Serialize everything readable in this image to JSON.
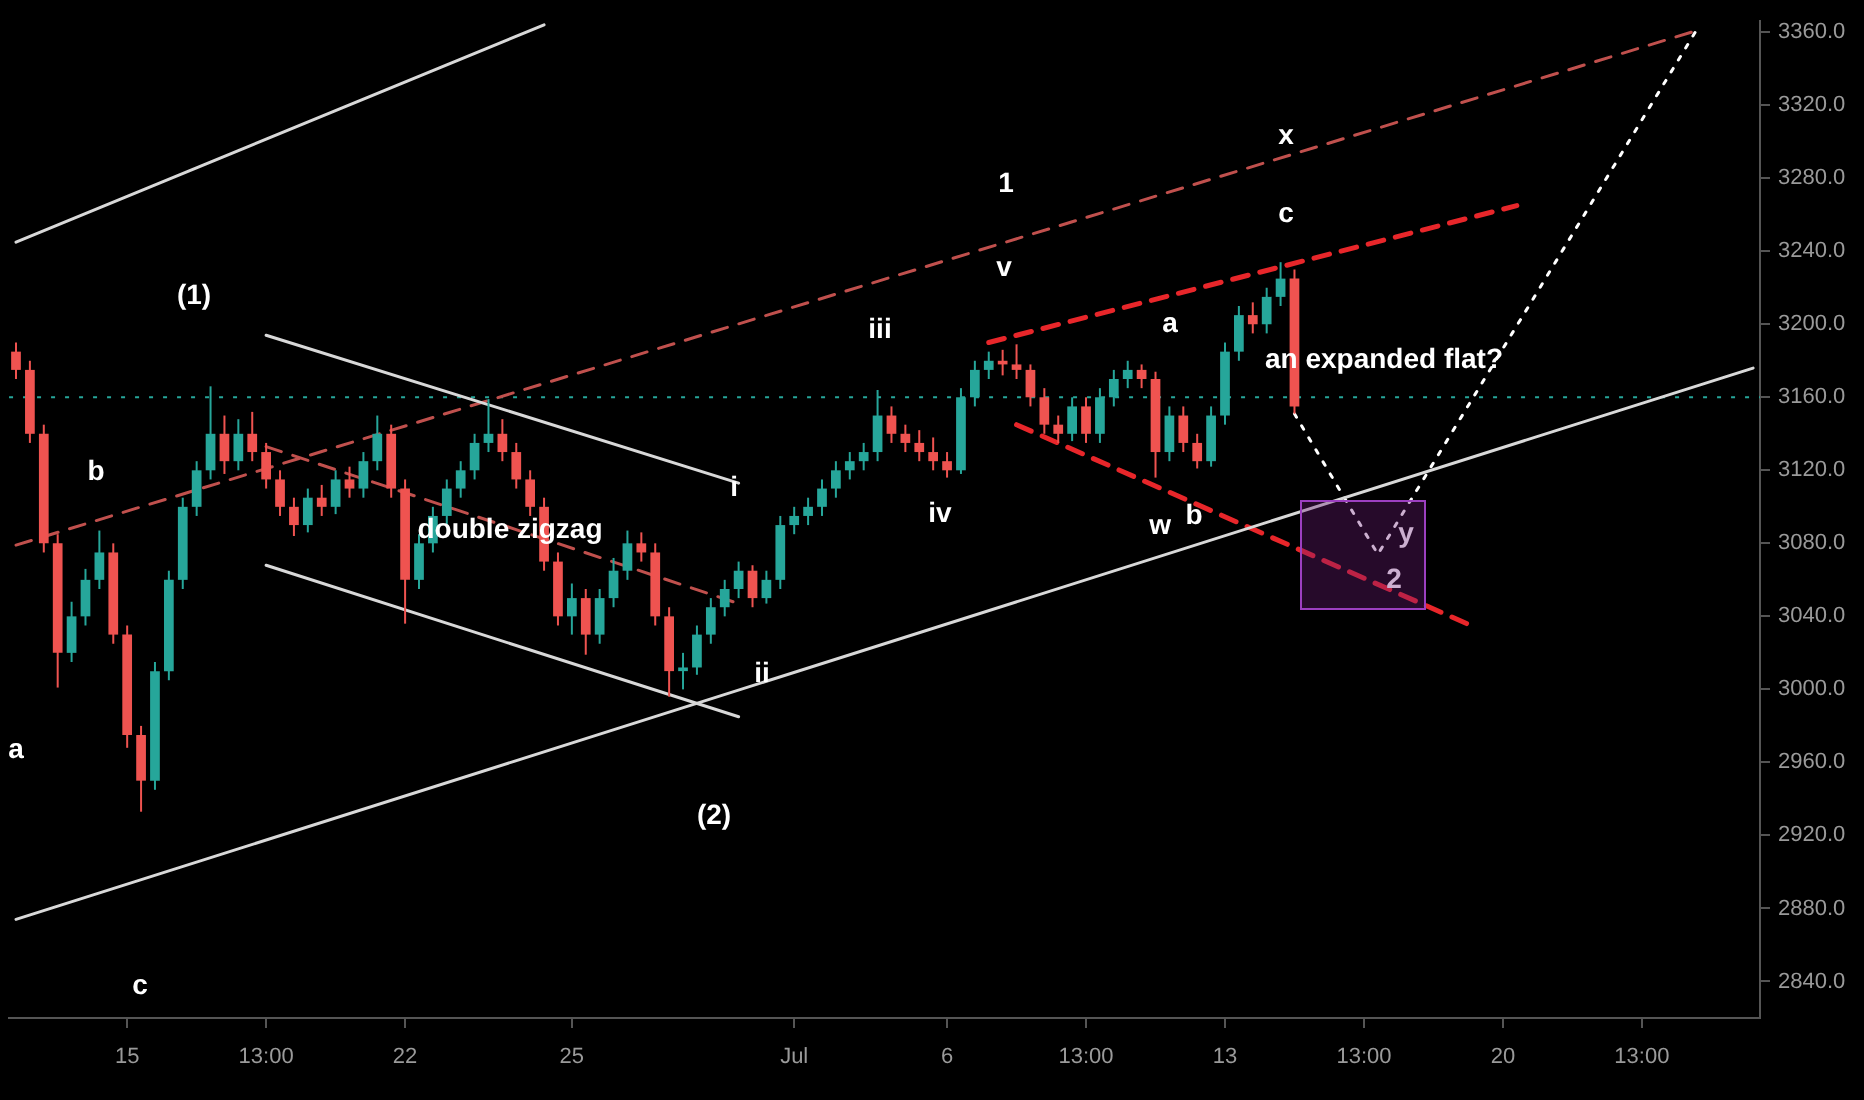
{
  "chart_data": {
    "type": "candlestick",
    "categories": [
      null,
      null,
      null,
      null,
      null,
      null,
      null,
      null,
      "15",
      null,
      null,
      null,
      null,
      null,
      null,
      null,
      null,
      null,
      "13:00",
      null,
      null,
      null,
      null,
      null,
      null,
      null,
      null,
      null,
      "22",
      null,
      null,
      null,
      null,
      null,
      null,
      null,
      null,
      null,
      null,
      null,
      "25",
      null,
      null,
      null,
      null,
      null,
      null,
      null,
      null,
      null,
      null,
      null,
      null,
      null,
      null,
      null,
      "Jul",
      null,
      null,
      null,
      null,
      null,
      null,
      null,
      null,
      null,
      null,
      "6",
      null,
      null,
      null,
      null,
      null,
      null,
      null,
      null,
      null,
      "13:00",
      null,
      null,
      null,
      null,
      null,
      null,
      null,
      null,
      null,
      "13",
      null,
      null,
      null,
      null,
      null,
      null,
      null,
      null,
      null,
      "13:00",
      null,
      null,
      null,
      null,
      null,
      null,
      null,
      null,
      null,
      "20",
      null,
      null,
      null,
      null,
      null,
      null,
      null,
      null,
      null,
      "13:00",
      null,
      null,
      null,
      null,
      null,
      null,
      null,
      null
    ],
    "ohlc": [
      [
        3185,
        3190,
        3170,
        3175
      ],
      [
        3175,
        3180,
        3135,
        3140
      ],
      [
        3140,
        3145,
        3075,
        3080
      ],
      [
        3080,
        3085,
        3001,
        3020
      ],
      [
        3020,
        3048,
        3015,
        3040
      ],
      [
        3040,
        3066,
        3035,
        3060
      ],
      [
        3060,
        3087,
        3055,
        3075
      ],
      [
        3075,
        3080,
        3025,
        3030
      ],
      [
        3030,
        3035,
        2968,
        2975
      ],
      [
        2975,
        2980,
        2933,
        2950
      ],
      [
        2950,
        3015,
        2945,
        3010
      ],
      [
        3010,
        3065,
        3005,
        3060
      ],
      [
        3060,
        3105,
        3055,
        3100
      ],
      [
        3100,
        3125,
        3095,
        3120
      ],
      [
        3120,
        3166,
        3115,
        3140
      ],
      [
        3140,
        3150,
        3118,
        3125
      ],
      [
        3125,
        3148,
        3120,
        3140
      ],
      [
        3140,
        3152,
        3125,
        3130
      ],
      [
        3130,
        3135,
        3110,
        3115
      ],
      [
        3115,
        3120,
        3095,
        3100
      ],
      [
        3100,
        3105,
        3084,
        3090
      ],
      [
        3090,
        3110,
        3086,
        3105
      ],
      [
        3105,
        3112,
        3095,
        3100
      ],
      [
        3100,
        3120,
        3096,
        3115
      ],
      [
        3115,
        3122,
        3105,
        3110
      ],
      [
        3110,
        3130,
        3105,
        3125
      ],
      [
        3125,
        3150,
        3120,
        3140
      ],
      [
        3140,
        3145,
        3105,
        3110
      ],
      [
        3110,
        3115,
        3036,
        3060
      ],
      [
        3060,
        3085,
        3055,
        3080
      ],
      [
        3080,
        3100,
        3075,
        3095
      ],
      [
        3095,
        3115,
        3090,
        3110
      ],
      [
        3110,
        3125,
        3105,
        3120
      ],
      [
        3120,
        3140,
        3115,
        3135
      ],
      [
        3135,
        3159,
        3130,
        3140
      ],
      [
        3140,
        3148,
        3125,
        3130
      ],
      [
        3130,
        3135,
        3110,
        3115
      ],
      [
        3115,
        3120,
        3095,
        3100
      ],
      [
        3100,
        3105,
        3065,
        3070
      ],
      [
        3070,
        3075,
        3035,
        3040
      ],
      [
        3040,
        3058,
        3030,
        3050
      ],
      [
        3050,
        3055,
        3019,
        3030
      ],
      [
        3030,
        3055,
        3025,
        3050
      ],
      [
        3050,
        3072,
        3045,
        3065
      ],
      [
        3065,
        3087,
        3060,
        3080
      ],
      [
        3080,
        3086,
        3070,
        3075
      ],
      [
        3075,
        3080,
        3035,
        3040
      ],
      [
        3040,
        3045,
        2996,
        3010
      ],
      [
        3010,
        3020,
        3000,
        3012
      ],
      [
        3012,
        3035,
        3008,
        3030
      ],
      [
        3030,
        3050,
        3025,
        3045
      ],
      [
        3045,
        3060,
        3040,
        3055
      ],
      [
        3055,
        3070,
        3050,
        3065
      ],
      [
        3065,
        3068,
        3045,
        3050
      ],
      [
        3050,
        3065,
        3047,
        3060
      ],
      [
        3060,
        3095,
        3055,
        3090
      ],
      [
        3090,
        3100,
        3085,
        3095
      ],
      [
        3095,
        3105,
        3090,
        3100
      ],
      [
        3100,
        3115,
        3095,
        3110
      ],
      [
        3110,
        3125,
        3105,
        3120
      ],
      [
        3120,
        3130,
        3115,
        3125
      ],
      [
        3125,
        3135,
        3120,
        3130
      ],
      [
        3130,
        3164,
        3125,
        3150
      ],
      [
        3150,
        3155,
        3135,
        3140
      ],
      [
        3140,
        3145,
        3130,
        3135
      ],
      [
        3135,
        3142,
        3125,
        3130
      ],
      [
        3130,
        3138,
        3120,
        3125
      ],
      [
        3125,
        3130,
        3116,
        3120
      ],
      [
        3120,
        3165,
        3118,
        3160
      ],
      [
        3160,
        3180,
        3155,
        3175
      ],
      [
        3175,
        3185,
        3170,
        3180
      ],
      [
        3180,
        3186,
        3172,
        3178
      ],
      [
        3178,
        3189,
        3170,
        3175
      ],
      [
        3175,
        3178,
        3155,
        3160
      ],
      [
        3160,
        3165,
        3140,
        3145
      ],
      [
        3145,
        3150,
        3135,
        3140
      ],
      [
        3140,
        3160,
        3136,
        3155
      ],
      [
        3155,
        3160,
        3135,
        3140
      ],
      [
        3140,
        3165,
        3135,
        3160
      ],
      [
        3160,
        3175,
        3155,
        3170
      ],
      [
        3170,
        3180,
        3165,
        3175
      ],
      [
        3175,
        3178,
        3165,
        3170
      ],
      [
        3170,
        3174,
        3116,
        3130
      ],
      [
        3130,
        3155,
        3125,
        3150
      ],
      [
        3150,
        3155,
        3130,
        3135
      ],
      [
        3135,
        3140,
        3121,
        3125
      ],
      [
        3125,
        3155,
        3122,
        3150
      ],
      [
        3150,
        3190,
        3145,
        3185
      ],
      [
        3185,
        3210,
        3180,
        3205
      ],
      [
        3205,
        3212,
        3195,
        3200
      ],
      [
        3200,
        3220,
        3195,
        3215
      ],
      [
        3215,
        3234,
        3210,
        3225
      ],
      [
        3225,
        3230,
        3151,
        3155
      ],
      null,
      null,
      null,
      null,
      null,
      null,
      null,
      null,
      null,
      null,
      null,
      null,
      null,
      null,
      null,
      null,
      null,
      null,
      null,
      null,
      null,
      null,
      null,
      null,
      null,
      null,
      null,
      null,
      null,
      null,
      null,
      null,
      null
    ],
    "series": [
      {
        "type": "line",
        "color": "#d8d8d8",
        "line_style": "solid",
        "values": [
          3245,
          null,
          null,
          null,
          null,
          null,
          null,
          null,
          null,
          null,
          null,
          null,
          null,
          null,
          null,
          null,
          null,
          null,
          null,
          null,
          null,
          null,
          null,
          null,
          null,
          null,
          null,
          null,
          null,
          null,
          null,
          null,
          null,
          null,
          null,
          null,
          null,
          null,
          3364,
          null,
          null,
          null,
          null,
          null,
          null,
          null,
          null,
          null,
          null,
          null,
          null,
          null,
          null,
          null,
          null,
          null,
          null,
          null,
          null,
          null,
          null,
          null,
          null,
          null,
          null,
          null,
          null,
          null,
          null,
          null,
          null,
          null,
          null,
          null,
          null,
          null,
          null,
          null,
          null,
          null,
          null,
          null,
          null,
          null,
          null,
          null,
          null,
          null,
          null,
          null,
          null,
          null,
          null,
          null,
          null,
          null,
          null,
          null,
          null,
          null,
          null,
          null,
          null,
          null,
          null,
          null,
          null,
          null,
          null,
          null,
          null,
          null,
          null,
          null,
          null,
          null,
          null,
          null,
          null,
          null,
          null,
          null,
          null,
          null,
          null,
          null
        ]
      },
      {
        "type": "line",
        "color": "#d8d8d8",
        "line_style": "solid",
        "values": [
          2874,
          null,
          null,
          null,
          null,
          null,
          null,
          null,
          null,
          null,
          null,
          null,
          null,
          null,
          null,
          null,
          null,
          null,
          null,
          null,
          null,
          null,
          null,
          null,
          null,
          null,
          null,
          null,
          null,
          null,
          null,
          null,
          null,
          null,
          null,
          null,
          null,
          null,
          null,
          null,
          null,
          null,
          null,
          null,
          null,
          null,
          null,
          null,
          null,
          null,
          null,
          null,
          null,
          null,
          null,
          null,
          null,
          null,
          null,
          null,
          null,
          null,
          null,
          null,
          null,
          null,
          null,
          null,
          null,
          null,
          null,
          null,
          null,
          null,
          null,
          null,
          null,
          null,
          null,
          null,
          null,
          null,
          null,
          null,
          null,
          null,
          null,
          null,
          null,
          null,
          null,
          null,
          null,
          null,
          null,
          null,
          null,
          null,
          null,
          null,
          null,
          null,
          null,
          null,
          null,
          null,
          null,
          null,
          null,
          null,
          null,
          null,
          null,
          null,
          null,
          null,
          null,
          null,
          null,
          null,
          null,
          null,
          null,
          null,
          null,
          3176
        ]
      },
      {
        "type": "line",
        "color": "#d8d8d8",
        "line_style": "solid",
        "values": [
          null,
          null,
          null,
          null,
          null,
          null,
          null,
          null,
          null,
          null,
          null,
          null,
          null,
          null,
          null,
          null,
          null,
          null,
          3194,
          null,
          null,
          null,
          null,
          null,
          null,
          null,
          null,
          null,
          null,
          null,
          null,
          null,
          null,
          null,
          null,
          null,
          null,
          null,
          null,
          null,
          null,
          null,
          null,
          null,
          null,
          null,
          null,
          null,
          null,
          null,
          null,
          null,
          3113,
          null,
          null,
          null,
          null,
          null,
          null,
          null,
          null,
          null,
          null,
          null,
          null,
          null,
          null,
          null,
          null,
          null,
          null,
          null,
          null,
          null,
          null,
          null,
          null,
          null,
          null,
          null,
          null,
          null,
          null,
          null,
          null,
          null,
          null,
          null,
          null,
          null,
          null,
          null,
          null,
          null,
          null,
          null,
          null,
          null,
          null,
          null,
          null,
          null,
          null,
          null,
          null,
          null,
          null,
          null,
          null,
          null,
          null,
          null,
          null,
          null,
          null,
          null,
          null,
          null,
          null,
          null,
          null,
          null,
          null,
          null,
          null,
          null
        ]
      },
      {
        "type": "line",
        "color": "#d8d8d8",
        "line_style": "solid",
        "values": [
          null,
          null,
          null,
          null,
          null,
          null,
          null,
          null,
          null,
          null,
          null,
          null,
          null,
          null,
          null,
          null,
          null,
          null,
          3068,
          null,
          null,
          null,
          null,
          null,
          null,
          null,
          null,
          null,
          null,
          null,
          null,
          null,
          null,
          null,
          null,
          null,
          null,
          null,
          null,
          null,
          null,
          null,
          null,
          null,
          null,
          null,
          null,
          null,
          null,
          null,
          null,
          null,
          2985,
          null,
          null,
          null,
          null,
          null,
          null,
          null,
          null,
          null,
          null,
          null,
          null,
          null,
          null,
          null,
          null,
          null,
          null,
          null,
          null,
          null,
          null,
          null,
          null,
          null,
          null,
          null,
          null,
          null,
          null,
          null,
          null,
          null,
          null,
          null,
          null,
          null,
          null,
          null,
          null,
          null,
          null,
          null,
          null,
          null,
          null,
          null,
          null,
          null,
          null,
          null,
          null,
          null,
          null,
          null,
          null,
          null,
          null,
          null,
          null,
          null,
          null,
          null,
          null,
          null,
          null,
          null,
          null,
          null,
          null,
          null,
          null,
          null
        ]
      },
      {
        "type": "line",
        "color": "#c0504d",
        "line_style": "dashed",
        "values": [
          3079,
          null,
          null,
          null,
          null,
          null,
          null,
          null,
          null,
          null,
          null,
          null,
          null,
          null,
          null,
          null,
          null,
          null,
          null,
          null,
          null,
          null,
          null,
          null,
          null,
          null,
          null,
          null,
          null,
          null,
          null,
          null,
          null,
          null,
          null,
          null,
          null,
          null,
          null,
          null,
          null,
          null,
          null,
          null,
          null,
          null,
          null,
          null,
          null,
          null,
          null,
          null,
          null,
          null,
          null,
          null,
          null,
          null,
          null,
          null,
          null,
          null,
          null,
          null,
          null,
          null,
          null,
          null,
          null,
          null,
          null,
          null,
          null,
          null,
          null,
          null,
          null,
          null,
          null,
          null,
          null,
          null,
          null,
          null,
          null,
          null,
          null,
          null,
          null,
          null,
          null,
          null,
          null,
          null,
          null,
          null,
          null,
          null,
          null,
          null,
          null,
          null,
          null,
          null,
          null,
          null,
          null,
          null,
          null,
          null,
          null,
          null,
          null,
          null,
          null,
          null,
          null,
          null,
          null,
          null,
          null,
          3361,
          null,
          null,
          null,
          null
        ]
      },
      {
        "type": "line",
        "color": "#c0504d",
        "line_style": "dashed",
        "values": [
          null,
          null,
          null,
          null,
          null,
          null,
          null,
          null,
          null,
          null,
          null,
          null,
          null,
          null,
          null,
          null,
          null,
          null,
          3133,
          null,
          null,
          null,
          null,
          null,
          null,
          null,
          null,
          null,
          null,
          null,
          null,
          null,
          null,
          null,
          null,
          null,
          null,
          null,
          null,
          null,
          null,
          null,
          null,
          null,
          null,
          null,
          null,
          null,
          null,
          null,
          null,
          null,
          3047,
          null,
          null,
          null,
          null,
          null,
          null,
          null,
          null,
          null,
          null,
          null,
          null,
          null,
          null,
          null,
          null,
          null,
          null,
          null,
          null,
          null,
          null,
          null,
          null,
          null,
          null,
          null,
          null,
          null,
          null,
          null,
          null,
          null,
          null,
          null,
          null,
          null,
          null,
          null,
          null,
          null,
          null,
          null,
          null,
          null,
          null,
          null,
          null,
          null,
          null,
          null,
          null,
          null,
          null,
          null,
          null,
          null,
          null,
          null,
          null,
          null,
          null,
          null,
          null,
          null,
          null,
          null,
          null,
          null,
          null,
          null,
          null,
          null
        ]
      },
      {
        "type": "line",
        "color": "#e8262a",
        "line_style": "dashed",
        "values": [
          null,
          null,
          null,
          null,
          null,
          null,
          null,
          null,
          null,
          null,
          null,
          null,
          null,
          null,
          null,
          null,
          null,
          null,
          null,
          null,
          null,
          null,
          null,
          null,
          null,
          null,
          null,
          null,
          null,
          null,
          null,
          null,
          null,
          null,
          null,
          null,
          null,
          null,
          null,
          null,
          null,
          null,
          null,
          null,
          null,
          null,
          null,
          null,
          null,
          null,
          null,
          null,
          null,
          null,
          null,
          null,
          null,
          null,
          null,
          null,
          null,
          null,
          null,
          null,
          null,
          null,
          null,
          null,
          null,
          null,
          3190,
          null,
          null,
          null,
          null,
          null,
          null,
          null,
          null,
          null,
          null,
          null,
          null,
          null,
          null,
          null,
          null,
          null,
          null,
          null,
          null,
          null,
          null,
          null,
          null,
          null,
          null,
          null,
          null,
          null,
          null,
          null,
          null,
          null,
          null,
          null,
          null,
          null,
          3265,
          null,
          null,
          null,
          null,
          null,
          null,
          null,
          null,
          null,
          null,
          null,
          null,
          null,
          null,
          null,
          null,
          null
        ]
      },
      {
        "type": "line",
        "color": "#e8262a",
        "line_style": "dashed",
        "values": [
          null,
          null,
          null,
          null,
          null,
          null,
          null,
          null,
          null,
          null,
          null,
          null,
          null,
          null,
          null,
          null,
          null,
          null,
          null,
          null,
          null,
          null,
          null,
          null,
          null,
          null,
          null,
          null,
          null,
          null,
          null,
          null,
          null,
          null,
          null,
          null,
          null,
          null,
          null,
          null,
          null,
          null,
          null,
          null,
          null,
          null,
          null,
          null,
          null,
          null,
          null,
          null,
          null,
          null,
          null,
          null,
          null,
          null,
          null,
          null,
          null,
          null,
          null,
          null,
          null,
          null,
          null,
          null,
          null,
          null,
          null,
          null,
          3145,
          null,
          null,
          null,
          null,
          null,
          null,
          null,
          null,
          null,
          null,
          null,
          null,
          null,
          null,
          null,
          null,
          null,
          null,
          null,
          null,
          null,
          null,
          null,
          null,
          null,
          null,
          null,
          null,
          null,
          null,
          null,
          null,
          3034,
          null,
          null,
          null,
          null,
          null,
          null,
          null,
          null,
          null,
          null,
          null,
          null,
          null,
          null,
          null,
          null,
          null,
          null,
          null,
          null
        ]
      },
      {
        "type": "line",
        "color": "#ffffff",
        "line_style": "dotted",
        "values": [
          null,
          null,
          null,
          null,
          null,
          null,
          null,
          null,
          null,
          null,
          null,
          null,
          null,
          null,
          null,
          null,
          null,
          null,
          null,
          null,
          null,
          null,
          null,
          null,
          null,
          null,
          null,
          null,
          null,
          null,
          null,
          null,
          null,
          null,
          null,
          null,
          null,
          null,
          null,
          null,
          null,
          null,
          null,
          null,
          null,
          null,
          null,
          null,
          null,
          null,
          null,
          null,
          null,
          null,
          null,
          null,
          null,
          null,
          null,
          null,
          null,
          null,
          null,
          null,
          null,
          null,
          null,
          null,
          null,
          null,
          null,
          null,
          null,
          null,
          null,
          null,
          null,
          null,
          null,
          null,
          null,
          null,
          null,
          null,
          null,
          null,
          null,
          null,
          null,
          null,
          null,
          null,
          3151,
          null,
          null,
          null,
          null,
          null,
          3074,
          null,
          null,
          null,
          null,
          null,
          null,
          null,
          null,
          null,
          null,
          null,
          null,
          null,
          null,
          null,
          null,
          null,
          null,
          null,
          null,
          null,
          null,
          3362,
          null,
          null,
          null,
          null
        ]
      }
    ],
    "ylim": [
      2820,
      3366
    ],
    "yticks": [
      {
        "value": 2840,
        "label": "2840.0"
      },
      {
        "value": 2880,
        "label": "2880.0"
      },
      {
        "value": 2920,
        "label": "2920.0"
      },
      {
        "value": 2960,
        "label": "2960.0"
      },
      {
        "value": 3000,
        "label": "3000.0"
      },
      {
        "value": 3040,
        "label": "3040.0"
      },
      {
        "value": 3080,
        "label": "3080.0"
      },
      {
        "value": 3120,
        "label": "3120.0"
      },
      {
        "value": 3160,
        "label": "3160.0"
      },
      {
        "value": 3200,
        "label": "3200.0"
      },
      {
        "value": 3240,
        "label": "3240.0"
      },
      {
        "value": 3280,
        "label": "3280.0"
      },
      {
        "value": 3320,
        "label": "3320.0"
      },
      {
        "value": 3360,
        "label": "3360.0"
      }
    ],
    "ref_lines": [
      {
        "axis": "y",
        "value": 3160,
        "color": "#26a69a",
        "line_style": "dotted"
      }
    ],
    "annotations": [
      "a",
      "b",
      "c",
      "(1)",
      "double zigzag",
      "i",
      "ii",
      "(2)",
      "iii",
      "iv",
      "v",
      "1",
      "a",
      "w",
      "b",
      "c",
      "x",
      "an expanded flat?",
      "y",
      "2"
    ]
  }
}
